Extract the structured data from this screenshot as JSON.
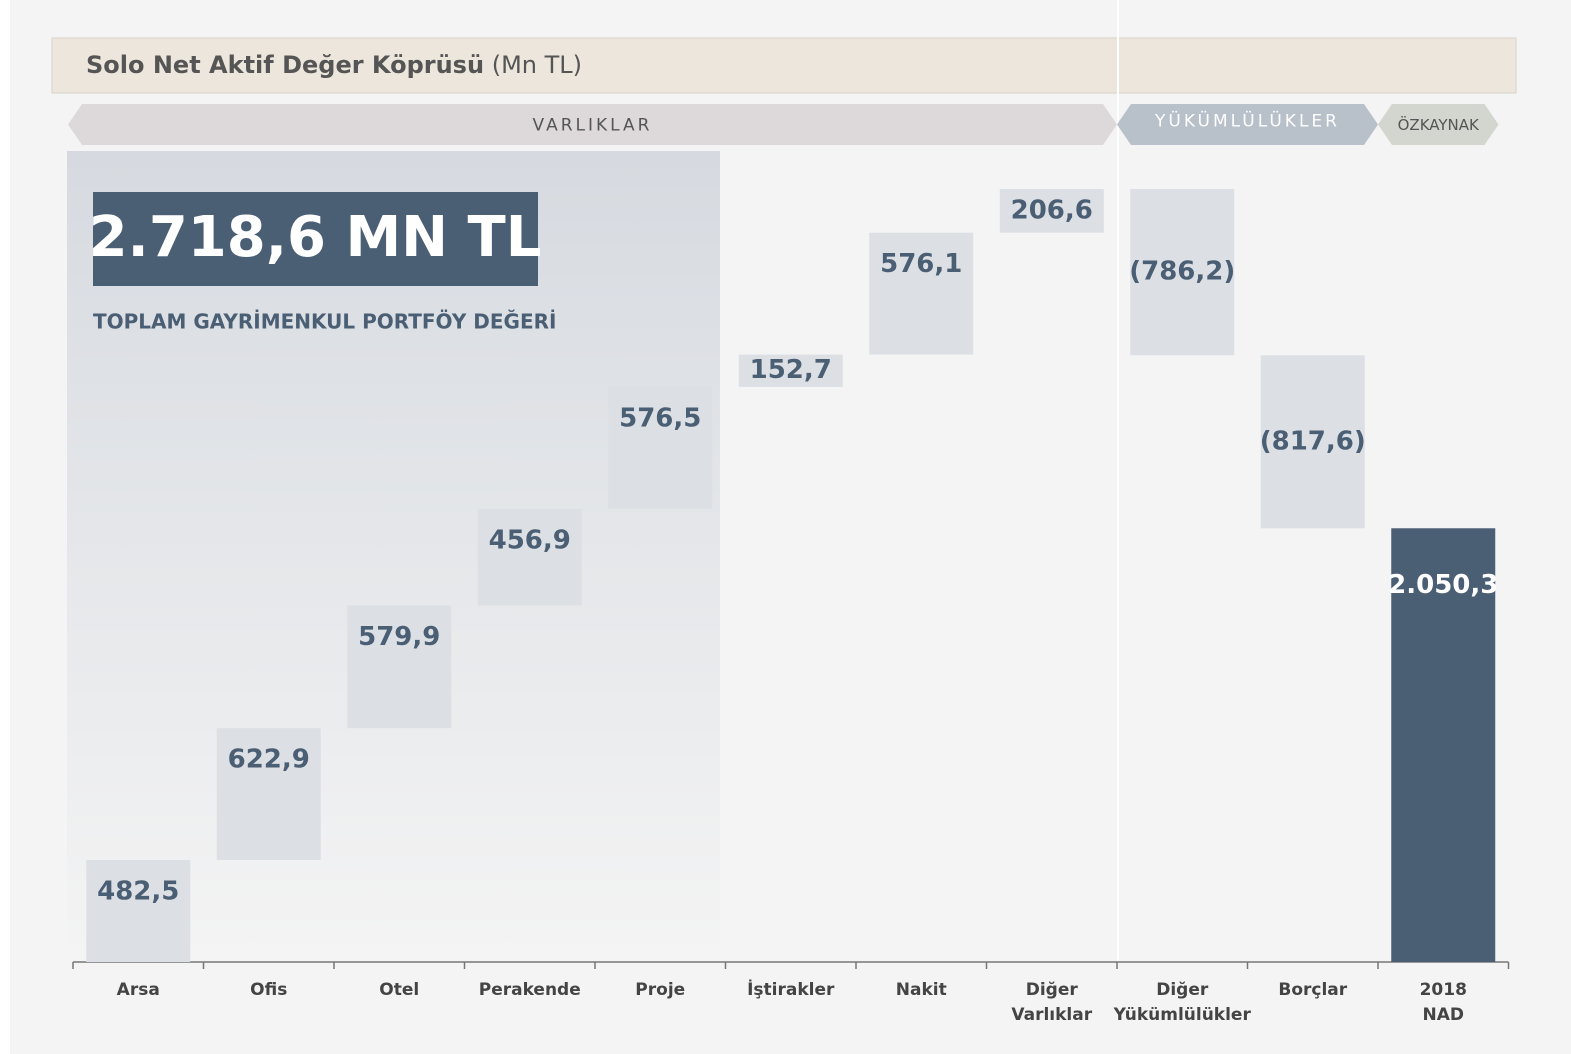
{
  "chart_data": {
    "type": "waterfall",
    "title": "Solo Net Aktif Değer Köprüsü",
    "subtitle": "(Mn TL)",
    "groups": [
      {
        "label": "VARLIKLAR",
        "from": 0,
        "to": 7,
        "color": "#ddd9da"
      },
      {
        "label": "YÜKÜMLÜLÜKLER",
        "from": 8,
        "to": 9,
        "color": "#b8c0ca"
      },
      {
        "label": "ÖZKAYNAK",
        "from": 10,
        "to": 10,
        "color": "#d3d6cf"
      }
    ],
    "callout": {
      "value_label": "2.718,6 MN TL",
      "caption": "TOPLAM GAYRİMENKUL PORTFÖY DEĞERİ",
      "from": 0,
      "to": 4
    },
    "categories": [
      [
        "Arsa"
      ],
      [
        "Ofis"
      ],
      [
        "Otel"
      ],
      [
        "Perakende"
      ],
      [
        "Proje"
      ],
      [
        "İştirakler"
      ],
      [
        "Nakit"
      ],
      [
        "Diğer",
        "Varlıklar"
      ],
      [
        "Diğer",
        "Yükümlülükler"
      ],
      [
        "Borçlar"
      ],
      [
        "2018",
        "NAD"
      ]
    ],
    "values": [
      482.5,
      622.9,
      579.9,
      456.9,
      576.5,
      152.7,
      576.1,
      206.6,
      -786.2,
      -817.6,
      2050.3
    ],
    "value_labels": [
      "482,5",
      "622,9",
      "579,9",
      "456,9",
      "576,5",
      "152,7",
      "576,1",
      "206,6",
      "(786,2)",
      "(817,6)",
      "2.050,3"
    ],
    "is_total": [
      false,
      false,
      false,
      false,
      false,
      false,
      false,
      false,
      false,
      false,
      true
    ],
    "color": "#dcdfe4",
    "total_color": "#4a5e74"
  }
}
